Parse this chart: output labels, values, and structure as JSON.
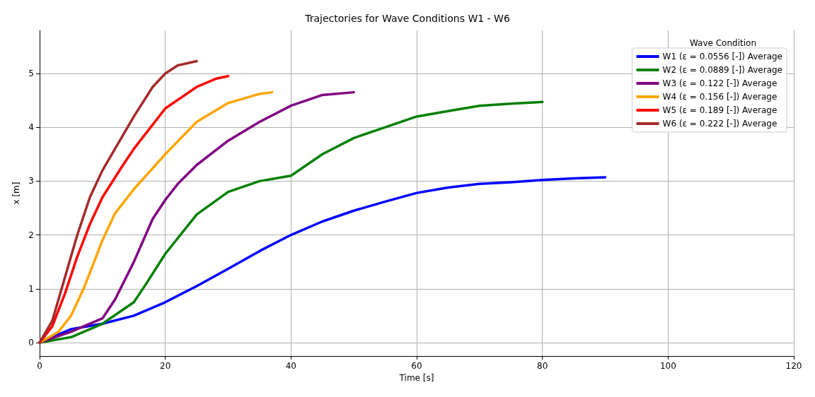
{
  "chart_data": {
    "type": "line",
    "title": "Trajectories for Wave Conditions W1 - W6",
    "xlabel": "Time [s]",
    "ylabel": "x [m]",
    "legend_title": "Wave Condition",
    "legend": "top right",
    "grid": true,
    "marker": "none",
    "line_style": "solid",
    "xlim": [
      0,
      120
    ],
    "xticks": [
      0,
      20,
      40,
      60,
      80,
      100,
      120
    ],
    "ylim": [
      -0.25,
      5.8
    ],
    "yticks": [
      0,
      1,
      2,
      3,
      4,
      5
    ],
    "series": [
      {
        "name": "W1 (ε = 0.0556 [-]) Average",
        "color": "#0000ff",
        "x": [
          0,
          5,
          10,
          15,
          20,
          25,
          30,
          35,
          40,
          45,
          50,
          55,
          60,
          65,
          70,
          75,
          80,
          85,
          90
        ],
        "values": [
          0,
          0.25,
          0.35,
          0.5,
          0.75,
          1.05,
          1.37,
          1.7,
          2.0,
          2.25,
          2.45,
          2.62,
          2.78,
          2.88,
          2.95,
          2.98,
          3.02,
          3.05,
          3.07
        ]
      },
      {
        "name": "W2 (ε = 0.0889 [-]) Average",
        "color": "#008000",
        "x": [
          0,
          5,
          10,
          15,
          17,
          20,
          25,
          30,
          35,
          40,
          45,
          50,
          55,
          60,
          65,
          70,
          75,
          80
        ],
        "values": [
          0,
          0.1,
          0.35,
          0.75,
          1.1,
          1.65,
          2.38,
          2.8,
          3.0,
          3.1,
          3.5,
          3.8,
          4.0,
          4.2,
          4.3,
          4.4,
          4.44,
          4.47
        ]
      },
      {
        "name": "W3 (ε = 0.122 [-]) Average",
        "color": "#800080",
        "x": [
          0,
          5,
          10,
          12,
          15,
          18,
          20,
          22,
          25,
          30,
          35,
          40,
          45,
          50
        ],
        "values": [
          0,
          0.2,
          0.45,
          0.8,
          1.5,
          2.3,
          2.65,
          2.95,
          3.3,
          3.75,
          4.1,
          4.4,
          4.6,
          4.65
        ]
      },
      {
        "name": "W4 (ε = 0.156 [-]) Average",
        "color": "#ffa500",
        "x": [
          0,
          3,
          5,
          7,
          9,
          10,
          12,
          15,
          20,
          25,
          30,
          35,
          37
        ],
        "values": [
          0,
          0.2,
          0.5,
          1.0,
          1.6,
          1.9,
          2.4,
          2.85,
          3.5,
          4.1,
          4.45,
          4.62,
          4.65
        ]
      },
      {
        "name": "W5 (ε = 0.189 [-]) Average",
        "color": "#ff0000",
        "x": [
          0,
          2,
          4,
          6,
          8,
          10,
          13,
          15,
          18,
          20,
          25,
          28,
          30
        ],
        "values": [
          0,
          0.3,
          0.9,
          1.6,
          2.2,
          2.7,
          3.25,
          3.6,
          4.05,
          4.35,
          4.75,
          4.9,
          4.95
        ]
      },
      {
        "name": "W6 (ε = 0.222 [-]) Average",
        "color": "#a52a2a",
        "x": [
          0,
          2,
          4,
          6,
          8,
          10,
          12,
          15,
          18,
          20,
          22,
          25
        ],
        "values": [
          0,
          0.4,
          1.2,
          2.0,
          2.7,
          3.2,
          3.6,
          4.2,
          4.75,
          5.0,
          5.15,
          5.23
        ]
      }
    ]
  }
}
